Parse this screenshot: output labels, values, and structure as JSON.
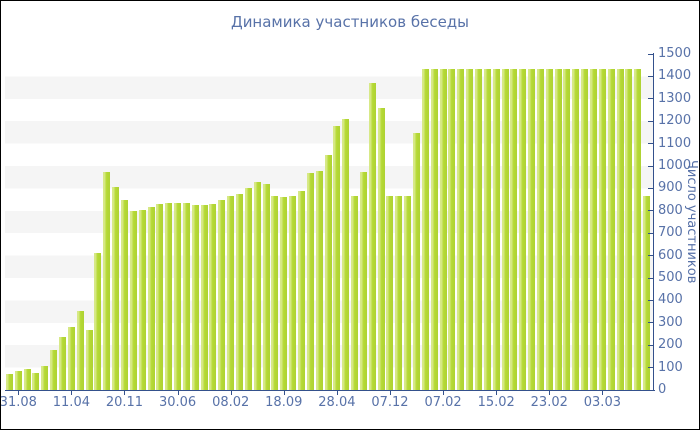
{
  "chart_data": {
    "type": "bar",
    "title": "Динамика участников беседы",
    "ylabel": "Число участников",
    "xlabel": "",
    "ylim": [
      0,
      1500
    ],
    "ytick_step": 100,
    "grid": "striped-horizontal-bands",
    "legend": "none",
    "y_axis_position": "right",
    "x_tick_labels": [
      "31.08",
      "11.04",
      "20.11",
      "30.06",
      "08.02",
      "18.09",
      "28.04",
      "07.12",
      "07.02",
      "15.02",
      "23.02",
      "03.03"
    ],
    "x_tick_every": 6,
    "x_tick_first_bar_index": 1,
    "values": [
      70,
      85,
      95,
      75,
      105,
      180,
      235,
      280,
      353,
      268,
      610,
      975,
      905,
      850,
      800,
      805,
      815,
      830,
      835,
      835,
      835,
      825,
      828,
      832,
      847,
      865,
      877,
      902,
      929,
      921,
      865,
      862,
      865,
      887,
      970,
      976,
      1051,
      1179,
      1208,
      865,
      973,
      1370,
      1260,
      865,
      865,
      865,
      1147,
      1434,
      1434,
      1434,
      1434,
      1434,
      1434,
      1434,
      1434,
      1434,
      1434,
      1434,
      1434,
      1434,
      1434,
      1434,
      1434,
      1434,
      1434,
      1434,
      1434,
      1434,
      1434,
      1434,
      1434,
      1434,
      865
    ],
    "colors": {
      "bar": "#b5d935",
      "bar_light_edge": "#d7e987",
      "bar_dark_edge": "#aed233",
      "text": "#5872a8",
      "axis": "#34518c",
      "stripe": "#f5f5f5",
      "background": "#ffffff"
    }
  }
}
